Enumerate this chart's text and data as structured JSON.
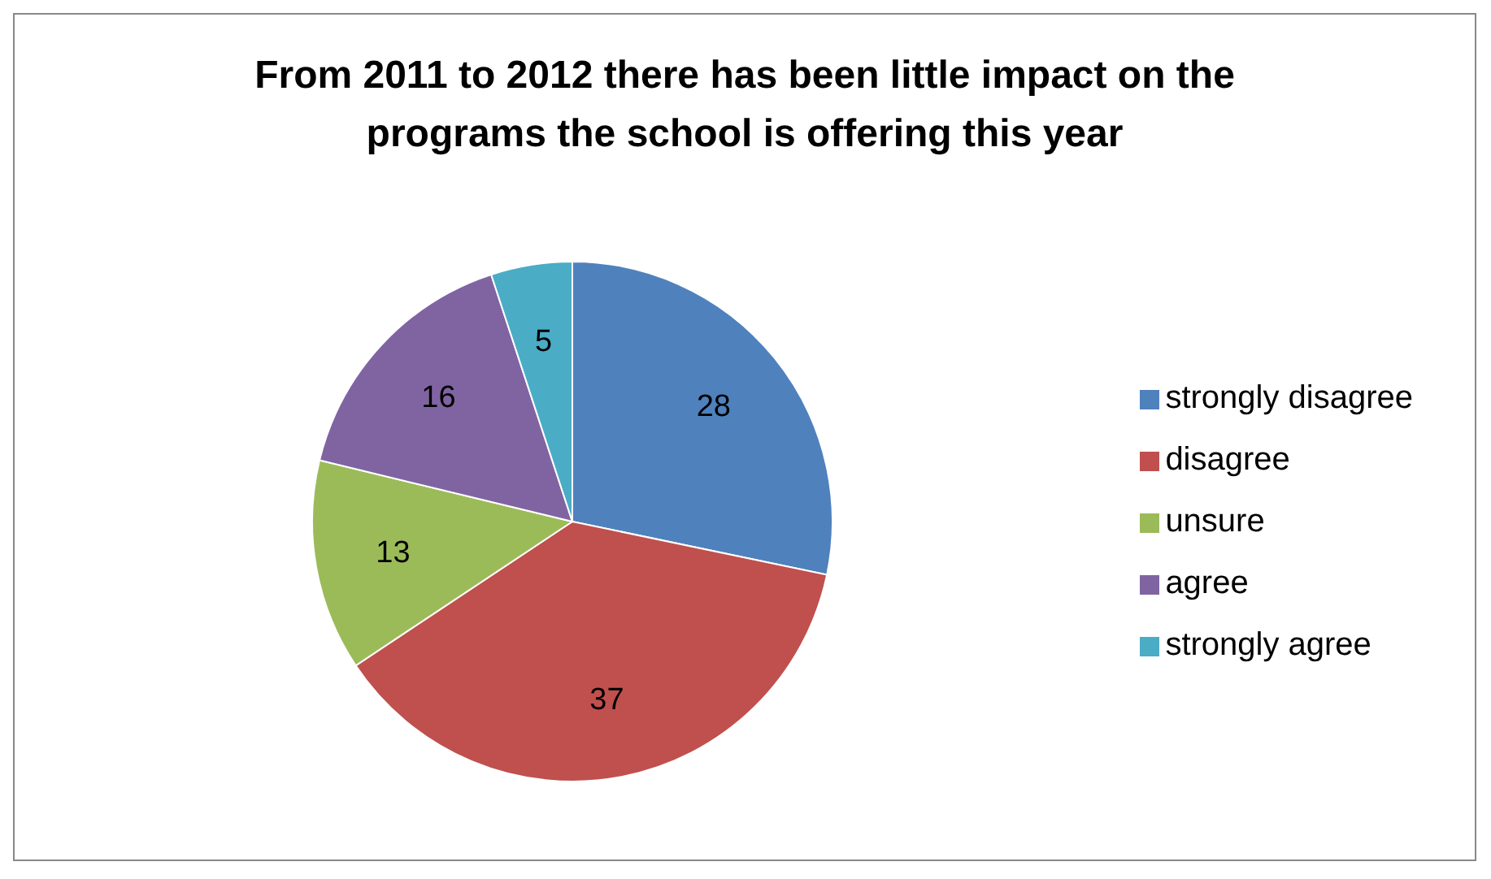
{
  "chart_data": {
    "type": "pie",
    "title": "From 2011 to 2012 there has been little impact on the programs the school is offering this year",
    "categories": [
      "strongly disagree",
      "disagree",
      "unsure",
      "agree",
      "strongly agree"
    ],
    "values": [
      28,
      37,
      13,
      16,
      5
    ],
    "colors": [
      "#4f81bd",
      "#c0504d",
      "#9bbb59",
      "#8064a2",
      "#4bacc6"
    ],
    "data_labels": true,
    "legend": "right"
  }
}
